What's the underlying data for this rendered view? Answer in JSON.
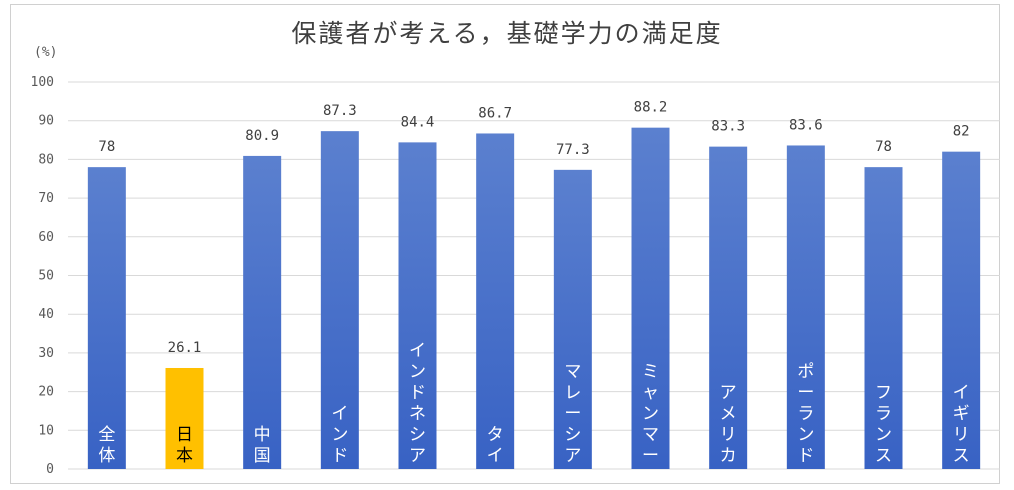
{
  "chart_data": {
    "type": "bar",
    "title": "保護者が考える，基礎学力の満足度",
    "ylabel": "(%)",
    "ylim": [
      0,
      100
    ],
    "yticks": [
      0,
      10,
      20,
      30,
      40,
      50,
      60,
      70,
      80,
      90,
      100
    ],
    "grid": true,
    "categories": [
      "全体",
      "日本",
      "中国",
      "インド",
      "インドネシア",
      "タイ",
      "マレーシア",
      "ミャンマー",
      "アメリカ",
      "ポーランド",
      "フランス",
      "イギリス"
    ],
    "values": [
      78,
      26.1,
      80.9,
      87.3,
      84.4,
      86.7,
      77.3,
      88.2,
      83.3,
      83.6,
      78,
      82
    ],
    "data_labels": [
      "78",
      "26.1",
      "80.9",
      "87.3",
      "84.4",
      "86.7",
      "77.3",
      "88.2",
      "83.3",
      "83.6",
      "78",
      "82"
    ],
    "highlight_category": "日本",
    "colors": {
      "bar_top": "#5b80cf",
      "bar_bottom": "#3862c4",
      "highlight": "#ffc000",
      "category_label_on_bar": "#ffffff",
      "category_label_on_highlight": "#000000",
      "grid": "#d9d9d9"
    }
  }
}
